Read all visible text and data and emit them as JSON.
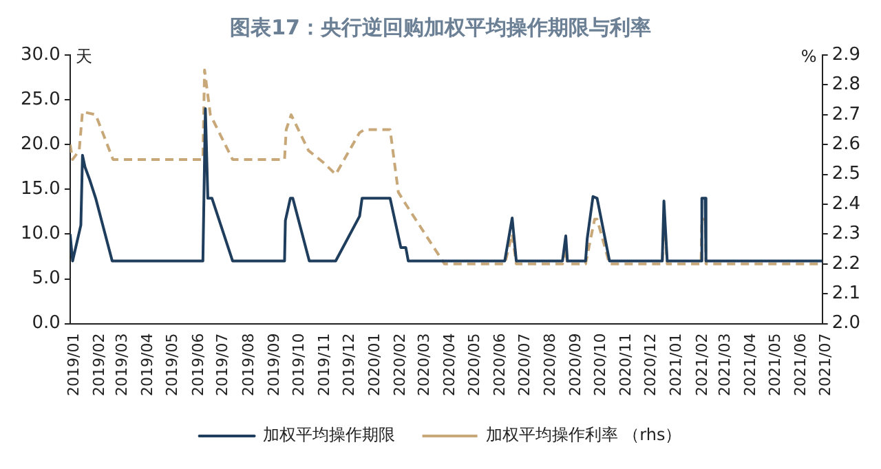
{
  "chart_data": {
    "type": "line",
    "title": "图表17：央行逆回购加权平均操作期限与利率",
    "ylabel": "天",
    "y2label": "%",
    "xlim": [
      "2019-01",
      "2021-07"
    ],
    "xticks": [
      {
        "value": "2019-01",
        "label": "2019/01"
      },
      {
        "value": "2019-02",
        "label": "2019/02"
      },
      {
        "value": "2019-03",
        "label": "2019/03"
      },
      {
        "value": "2019-04",
        "label": "2019/04"
      },
      {
        "value": "2019-05",
        "label": "2019/05"
      },
      {
        "value": "2019-06",
        "label": "2019/06"
      },
      {
        "value": "2019-07",
        "label": "2019/07"
      },
      {
        "value": "2019-08",
        "label": "2019/08"
      },
      {
        "value": "2019-09",
        "label": "2019/09"
      },
      {
        "value": "2019-10",
        "label": "2019/10"
      },
      {
        "value": "2019-11",
        "label": "2019/11"
      },
      {
        "value": "2019-12",
        "label": "2019/12"
      },
      {
        "value": "2020-01",
        "label": "2020/01"
      },
      {
        "value": "2020-02",
        "label": "2020/02"
      },
      {
        "value": "2020-03",
        "label": "2020/03"
      },
      {
        "value": "2020-04",
        "label": "2020/04"
      },
      {
        "value": "2020-05",
        "label": "2020/05"
      },
      {
        "value": "2020-06",
        "label": "2020/06"
      },
      {
        "value": "2020-07",
        "label": "2020/07"
      },
      {
        "value": "2020-08",
        "label": "2020/08"
      },
      {
        "value": "2020-09",
        "label": "2020/09"
      },
      {
        "value": "2020-10",
        "label": "2020/10"
      },
      {
        "value": "2020-11",
        "label": "2020/11"
      },
      {
        "value": "2020-12",
        "label": "2020/12"
      },
      {
        "value": "2021-01",
        "label": "2021/01"
      },
      {
        "value": "2021-02",
        "label": "2021/02"
      },
      {
        "value": "2021-03",
        "label": "2021/03"
      },
      {
        "value": "2021-04",
        "label": "2021/04"
      },
      {
        "value": "2021-05",
        "label": "2021/05"
      },
      {
        "value": "2021-06",
        "label": "2021/06"
      },
      {
        "value": "2021-07",
        "label": "2021/07"
      }
    ],
    "ylim": [
      0,
      30
    ],
    "yticks": [
      {
        "value": 0,
        "label": "0.0"
      },
      {
        "value": 5,
        "label": "5.0"
      },
      {
        "value": 10,
        "label": "10.0"
      },
      {
        "value": 15,
        "label": "15.0"
      },
      {
        "value": 20,
        "label": "20.0"
      },
      {
        "value": 25,
        "label": "25.0"
      },
      {
        "value": 30,
        "label": "30.0"
      }
    ],
    "y2lim": [
      2.0,
      2.9
    ],
    "y2ticks": [
      {
        "value": 2.0,
        "label": "2.0"
      },
      {
        "value": 2.1,
        "label": "2.1"
      },
      {
        "value": 2.2,
        "label": "2.2"
      },
      {
        "value": 2.3,
        "label": "2.3"
      },
      {
        "value": 2.4,
        "label": "2.4"
      },
      {
        "value": 2.5,
        "label": "2.5"
      },
      {
        "value": 2.6,
        "label": "2.6"
      },
      {
        "value": 2.7,
        "label": "2.7"
      },
      {
        "value": 2.8,
        "label": "2.8"
      },
      {
        "value": 2.9,
        "label": "2.9"
      }
    ],
    "grid": false,
    "legend": "bottom",
    "marker": "none",
    "series": [
      {
        "name": "加权平均操作期限",
        "color": "#1f3d5c",
        "line_style": "solid",
        "x": [
          "2019-01-01",
          "2019-01-04",
          "2019-01-14",
          "2019-01-16",
          "2019-01-19",
          "2019-01-25",
          "2019-02-01",
          "2019-02-21",
          "2019-06-11",
          "2019-06-14",
          "2019-06-17",
          "2019-06-22",
          "2019-07-17",
          "2019-09-18",
          "2019-09-19",
          "2019-09-25",
          "2019-09-28",
          "2019-10-18",
          "2019-11-19",
          "2019-12-18",
          "2019-12-21",
          "2020-01-24",
          "2020-02-06",
          "2020-02-12",
          "2020-02-15",
          "2020-06-11",
          "2020-06-20",
          "2020-06-25",
          "2020-08-20",
          "2020-08-24",
          "2020-08-26",
          "2020-09-17",
          "2020-09-19",
          "2020-09-26",
          "2020-10-01",
          "2020-10-16",
          "2020-12-19",
          "2020-12-21",
          "2020-12-25",
          "2021-02-04",
          "2021-02-05",
          "2021-02-09",
          "2021-02-10",
          "2021-07-01"
        ],
        "values": [
          10,
          7,
          11,
          18.8,
          17.5,
          16,
          14,
          7,
          7,
          24,
          14,
          14,
          7,
          7,
          11.5,
          14,
          14,
          7,
          7,
          12,
          14,
          14,
          8.5,
          8.5,
          7,
          7,
          11.8,
          7,
          7,
          9.8,
          7,
          7,
          9.5,
          14.2,
          14,
          7,
          7,
          13.7,
          7,
          7,
          14,
          14,
          7,
          7
        ]
      },
      {
        "name": "加权平均操作利率 （rhs）",
        "color": "#c8a878",
        "line_style": "dashed",
        "axis": "y2",
        "x": [
          "2019-01-01",
          "2019-01-04",
          "2019-01-12",
          "2019-01-16",
          "2019-02-01",
          "2019-02-22",
          "2019-06-11",
          "2019-06-13",
          "2019-06-20",
          "2019-07-17",
          "2019-09-18",
          "2019-09-20",
          "2019-09-26",
          "2019-10-17",
          "2019-11-04",
          "2019-11-19",
          "2019-12-18",
          "2019-12-24",
          "2020-01-24",
          "2020-02-03",
          "2020-02-12",
          "2020-03-30",
          "2020-06-11",
          "2020-06-20",
          "2020-06-25",
          "2020-08-20",
          "2020-08-24",
          "2020-08-26",
          "2020-09-17",
          "2020-09-28",
          "2020-10-01",
          "2020-10-16",
          "2020-12-19",
          "2020-12-21",
          "2020-12-25",
          "2021-02-04",
          "2021-02-05",
          "2021-02-09",
          "2021-02-10",
          "2021-07-01"
        ],
        "values": [
          2.6,
          2.55,
          2.58,
          2.71,
          2.7,
          2.55,
          2.55,
          2.85,
          2.7,
          2.55,
          2.55,
          2.65,
          2.7,
          2.58,
          2.54,
          2.5,
          2.64,
          2.65,
          2.65,
          2.44,
          2.4,
          2.2,
          2.2,
          2.3,
          2.2,
          2.2,
          2.25,
          2.2,
          2.2,
          2.35,
          2.35,
          2.2,
          2.2,
          2.35,
          2.2,
          2.2,
          2.35,
          2.35,
          2.2,
          2.2
        ]
      }
    ]
  }
}
